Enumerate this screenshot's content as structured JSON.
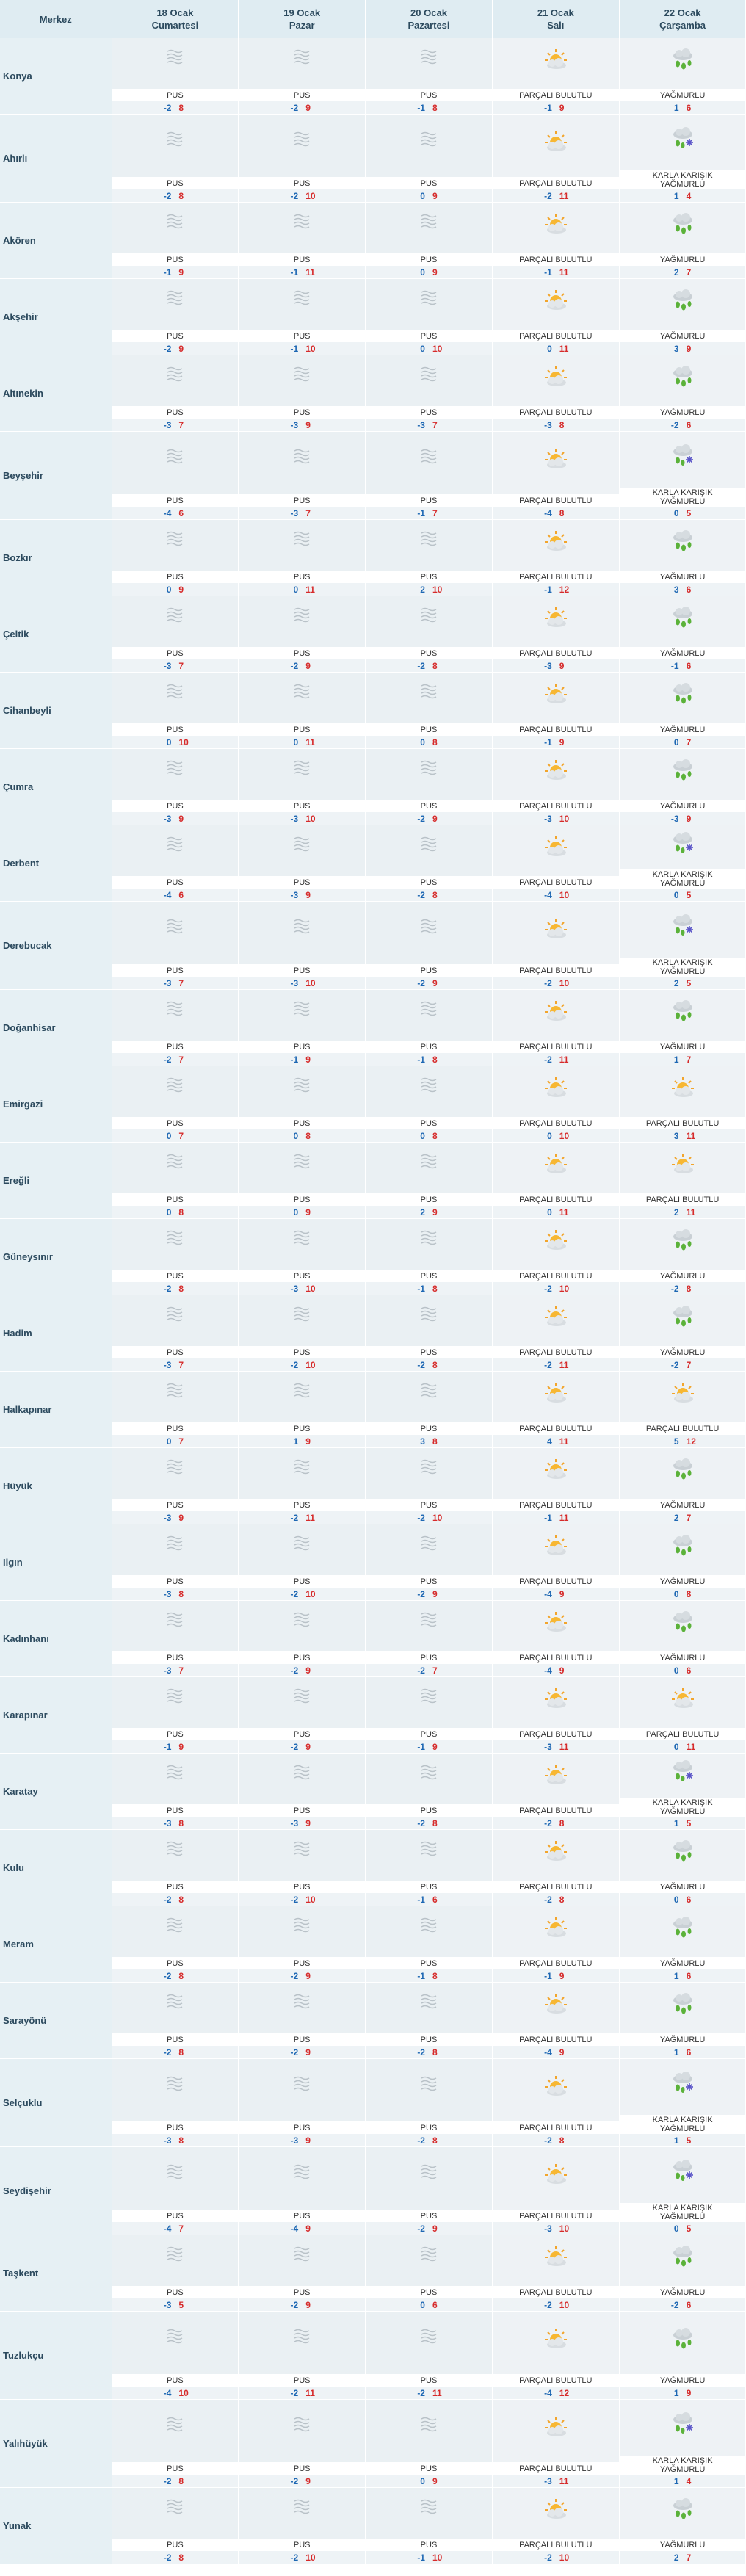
{
  "header": {
    "location_col": "Merkez",
    "days": [
      {
        "date": "18 Ocak",
        "day": "Cumartesi"
      },
      {
        "date": "19 Ocak",
        "day": "Pazar"
      },
      {
        "date": "20 Ocak",
        "day": "Pazartesi"
      },
      {
        "date": "21 Ocak",
        "day": "Salı"
      },
      {
        "date": "22 Ocak",
        "day": "Çarşamba"
      }
    ]
  },
  "icons": {
    "PUS": "fog-icon",
    "PARÇALI BULUTLU": "partly-cloudy-icon",
    "YAĞMURLU": "rain-icon",
    "KARLA KARIŞIK YAĞMURLU": "sleet-icon"
  },
  "rows": [
    {
      "name": "Konya",
      "h": 104,
      "days": [
        [
          "PUS",
          -2,
          8
        ],
        [
          "PUS",
          -2,
          9
        ],
        [
          "PUS",
          -1,
          8
        ],
        [
          "PARÇALI BULUTLU",
          -1,
          9
        ],
        [
          "YAĞMURLU",
          1,
          6
        ]
      ]
    },
    {
      "name": "Ahırlı",
      "h": 120,
      "days": [
        [
          "PUS",
          -2,
          8
        ],
        [
          "PUS",
          -2,
          10
        ],
        [
          "PUS",
          0,
          9
        ],
        [
          "PARÇALI BULUTLU",
          -2,
          11
        ],
        [
          "KARLA KARIŞIK YAĞMURLU",
          1,
          4
        ]
      ]
    },
    {
      "name": "Akören",
      "h": 104,
      "days": [
        [
          "PUS",
          -1,
          9
        ],
        [
          "PUS",
          -1,
          11
        ],
        [
          "PUS",
          0,
          9
        ],
        [
          "PARÇALI BULUTLU",
          -1,
          11
        ],
        [
          "YAĞMURLU",
          2,
          7
        ]
      ]
    },
    {
      "name": "Akşehir",
      "h": 104,
      "days": [
        [
          "PUS",
          -2,
          9
        ],
        [
          "PUS",
          -1,
          10
        ],
        [
          "PUS",
          0,
          10
        ],
        [
          "PARÇALI BULUTLU",
          0,
          11
        ],
        [
          "YAĞMURLU",
          3,
          9
        ]
      ]
    },
    {
      "name": "Altınekin",
      "h": 104,
      "days": [
        [
          "PUS",
          -3,
          7
        ],
        [
          "PUS",
          -3,
          9
        ],
        [
          "PUS",
          -3,
          7
        ],
        [
          "PARÇALI BULUTLU",
          -3,
          8
        ],
        [
          "YAĞMURLU",
          -2,
          6
        ]
      ]
    },
    {
      "name": "Beyşehir",
      "h": 120,
      "days": [
        [
          "PUS",
          -4,
          6
        ],
        [
          "PUS",
          -3,
          7
        ],
        [
          "PUS",
          -1,
          7
        ],
        [
          "PARÇALI BULUTLU",
          -4,
          8
        ],
        [
          "KARLA KARIŞIK YAĞMURLU",
          0,
          5
        ]
      ]
    },
    {
      "name": "Bozkır",
      "h": 104,
      "days": [
        [
          "PUS",
          0,
          9
        ],
        [
          "PUS",
          0,
          11
        ],
        [
          "PUS",
          2,
          10
        ],
        [
          "PARÇALI BULUTLU",
          -1,
          12
        ],
        [
          "YAĞMURLU",
          3,
          6
        ]
      ]
    },
    {
      "name": "Çeltik",
      "h": 104,
      "days": [
        [
          "PUS",
          -3,
          7
        ],
        [
          "PUS",
          -2,
          9
        ],
        [
          "PUS",
          -2,
          8
        ],
        [
          "PARÇALI BULUTLU",
          -3,
          9
        ],
        [
          "YAĞMURLU",
          -1,
          6
        ]
      ]
    },
    {
      "name": "Cihanbeyli",
      "h": 104,
      "days": [
        [
          "PUS",
          0,
          10
        ],
        [
          "PUS",
          0,
          11
        ],
        [
          "PUS",
          0,
          8
        ],
        [
          "PARÇALI BULUTLU",
          -1,
          9
        ],
        [
          "YAĞMURLU",
          0,
          7
        ]
      ]
    },
    {
      "name": "Çumra",
      "h": 104,
      "days": [
        [
          "PUS",
          -3,
          9
        ],
        [
          "PUS",
          -3,
          10
        ],
        [
          "PUS",
          -2,
          9
        ],
        [
          "PARÇALI BULUTLU",
          -3,
          10
        ],
        [
          "YAĞMURLU",
          -3,
          9
        ]
      ]
    },
    {
      "name": "Derbent",
      "h": 104,
      "days": [
        [
          "PUS",
          -4,
          6
        ],
        [
          "PUS",
          -3,
          9
        ],
        [
          "PUS",
          -2,
          8
        ],
        [
          "PARÇALI BULUTLU",
          -4,
          10
        ],
        [
          "KARLA KARIŞIK YAĞMURLU",
          0,
          5
        ]
      ]
    },
    {
      "name": "Derebucak",
      "h": 120,
      "days": [
        [
          "PUS",
          -3,
          7
        ],
        [
          "PUS",
          -3,
          10
        ],
        [
          "PUS",
          -2,
          9
        ],
        [
          "PARÇALI BULUTLU",
          -2,
          10
        ],
        [
          "KARLA KARIŞIK YAĞMURLU",
          2,
          5
        ]
      ]
    },
    {
      "name": "Doğanhisar",
      "h": 104,
      "days": [
        [
          "PUS",
          -2,
          7
        ],
        [
          "PUS",
          -1,
          9
        ],
        [
          "PUS",
          -1,
          8
        ],
        [
          "PARÇALI BULUTLU",
          -2,
          11
        ],
        [
          "YAĞMURLU",
          1,
          7
        ]
      ]
    },
    {
      "name": "Emirgazi",
      "h": 104,
      "days": [
        [
          "PUS",
          0,
          7
        ],
        [
          "PUS",
          0,
          8
        ],
        [
          "PUS",
          0,
          8
        ],
        [
          "PARÇALI BULUTLU",
          0,
          10
        ],
        [
          "PARÇALI BULUTLU",
          3,
          11
        ]
      ]
    },
    {
      "name": "Ereğli",
      "h": 104,
      "days": [
        [
          "PUS",
          0,
          8
        ],
        [
          "PUS",
          0,
          9
        ],
        [
          "PUS",
          2,
          9
        ],
        [
          "PARÇALI BULUTLU",
          0,
          11
        ],
        [
          "PARÇALI BULUTLU",
          2,
          11
        ]
      ]
    },
    {
      "name": "Güneysınır",
      "h": 104,
      "days": [
        [
          "PUS",
          -2,
          8
        ],
        [
          "PUS",
          -3,
          10
        ],
        [
          "PUS",
          -1,
          8
        ],
        [
          "PARÇALI BULUTLU",
          -2,
          10
        ],
        [
          "YAĞMURLU",
          -2,
          8
        ]
      ]
    },
    {
      "name": "Hadim",
      "h": 104,
      "days": [
        [
          "PUS",
          -3,
          7
        ],
        [
          "PUS",
          -2,
          10
        ],
        [
          "PUS",
          -2,
          8
        ],
        [
          "PARÇALI BULUTLU",
          -2,
          11
        ],
        [
          "YAĞMURLU",
          -2,
          7
        ]
      ]
    },
    {
      "name": "Halkapınar",
      "h": 104,
      "days": [
        [
          "PUS",
          0,
          7
        ],
        [
          "PUS",
          1,
          9
        ],
        [
          "PUS",
          3,
          8
        ],
        [
          "PARÇALI BULUTLU",
          4,
          11
        ],
        [
          "PARÇALI BULUTLU",
          5,
          12
        ]
      ]
    },
    {
      "name": "Hüyük",
      "h": 104,
      "days": [
        [
          "PUS",
          -3,
          9
        ],
        [
          "PUS",
          -2,
          11
        ],
        [
          "PUS",
          -2,
          10
        ],
        [
          "PARÇALI BULUTLU",
          -1,
          11
        ],
        [
          "YAĞMURLU",
          2,
          7
        ]
      ]
    },
    {
      "name": "Ilgın",
      "h": 104,
      "days": [
        [
          "PUS",
          -3,
          8
        ],
        [
          "PUS",
          -2,
          10
        ],
        [
          "PUS",
          -2,
          9
        ],
        [
          "PARÇALI BULUTLU",
          -4,
          9
        ],
        [
          "YAĞMURLU",
          0,
          8
        ]
      ]
    },
    {
      "name": "Kadınhanı",
      "h": 104,
      "days": [
        [
          "PUS",
          -3,
          7
        ],
        [
          "PUS",
          -2,
          9
        ],
        [
          "PUS",
          -2,
          7
        ],
        [
          "PARÇALI BULUTLU",
          -4,
          9
        ],
        [
          "YAĞMURLU",
          0,
          6
        ]
      ]
    },
    {
      "name": "Karapınar",
      "h": 104,
      "days": [
        [
          "PUS",
          -1,
          9
        ],
        [
          "PUS",
          -2,
          9
        ],
        [
          "PUS",
          -1,
          9
        ],
        [
          "PARÇALI BULUTLU",
          -3,
          11
        ],
        [
          "PARÇALI BULUTLU",
          0,
          11
        ]
      ]
    },
    {
      "name": "Karatay",
      "h": 104,
      "days": [
        [
          "PUS",
          -3,
          8
        ],
        [
          "PUS",
          -3,
          9
        ],
        [
          "PUS",
          -2,
          8
        ],
        [
          "PARÇALI BULUTLU",
          -2,
          8
        ],
        [
          "KARLA KARIŞIK YAĞMURLU",
          1,
          5
        ]
      ]
    },
    {
      "name": "Kulu",
      "h": 104,
      "days": [
        [
          "PUS",
          -2,
          8
        ],
        [
          "PUS",
          -2,
          10
        ],
        [
          "PUS",
          -1,
          6
        ],
        [
          "PARÇALI BULUTLU",
          -2,
          8
        ],
        [
          "YAĞMURLU",
          0,
          6
        ]
      ]
    },
    {
      "name": "Meram",
      "h": 104,
      "days": [
        [
          "PUS",
          -2,
          8
        ],
        [
          "PUS",
          -2,
          9
        ],
        [
          "PUS",
          -1,
          8
        ],
        [
          "PARÇALI BULUTLU",
          -1,
          9
        ],
        [
          "YAĞMURLU",
          1,
          6
        ]
      ]
    },
    {
      "name": "Sarayönü",
      "h": 104,
      "days": [
        [
          "PUS",
          -2,
          8
        ],
        [
          "PUS",
          -2,
          9
        ],
        [
          "PUS",
          -2,
          8
        ],
        [
          "PARÇALI BULUTLU",
          -4,
          9
        ],
        [
          "YAĞMURLU",
          1,
          6
        ]
      ]
    },
    {
      "name": "Selçuklu",
      "h": 120,
      "days": [
        [
          "PUS",
          -3,
          8
        ],
        [
          "PUS",
          -3,
          9
        ],
        [
          "PUS",
          -2,
          8
        ],
        [
          "PARÇALI BULUTLU",
          -2,
          8
        ],
        [
          "KARLA KARIŞIK YAĞMURLU",
          1,
          5
        ]
      ]
    },
    {
      "name": "Seydişehir",
      "h": 120,
      "days": [
        [
          "PUS",
          -4,
          7
        ],
        [
          "PUS",
          -4,
          9
        ],
        [
          "PUS",
          -2,
          9
        ],
        [
          "PARÇALI BULUTLU",
          -3,
          10
        ],
        [
          "KARLA KARIŞIK YAĞMURLU",
          0,
          5
        ]
      ]
    },
    {
      "name": "Taşkent",
      "h": 104,
      "days": [
        [
          "PUS",
          -3,
          5
        ],
        [
          "PUS",
          -2,
          9
        ],
        [
          "PUS",
          0,
          6
        ],
        [
          "PARÇALI BULUTLU",
          -2,
          10
        ],
        [
          "YAĞMURLU",
          -2,
          6
        ]
      ]
    },
    {
      "name": "Tuzlukçu",
      "h": 120,
      "days": [
        [
          "PUS",
          -4,
          10
        ],
        [
          "PUS",
          -2,
          11
        ],
        [
          "PUS",
          -2,
          11
        ],
        [
          "PARÇALI BULUTLU",
          -4,
          12
        ],
        [
          "YAĞMURLU",
          1,
          9
        ]
      ]
    },
    {
      "name": "Yalıhüyük",
      "h": 120,
      "days": [
        [
          "PUS",
          -2,
          8
        ],
        [
          "PUS",
          -2,
          9
        ],
        [
          "PUS",
          0,
          9
        ],
        [
          "PARÇALI BULUTLU",
          -3,
          11
        ],
        [
          "KARLA KARIŞIK YAĞMURLU",
          1,
          4
        ]
      ]
    },
    {
      "name": "Yunak",
      "h": 104,
      "days": [
        [
          "PUS",
          -2,
          8
        ],
        [
          "PUS",
          -2,
          10
        ],
        [
          "PUS",
          -1,
          10
        ],
        [
          "PARÇALI BULUTLU",
          -2,
          10
        ],
        [
          "YAĞMURLU",
          2,
          7
        ]
      ]
    }
  ],
  "colors": {
    "header_bg": "#dfecf2",
    "name_bg": "#e6f0f4",
    "icon_band": "#e8eef2",
    "temp_band": "#eef3f6",
    "min_temp": "#1d67b3",
    "max_temp": "#d62b2b",
    "text": "#2c4a5e"
  }
}
